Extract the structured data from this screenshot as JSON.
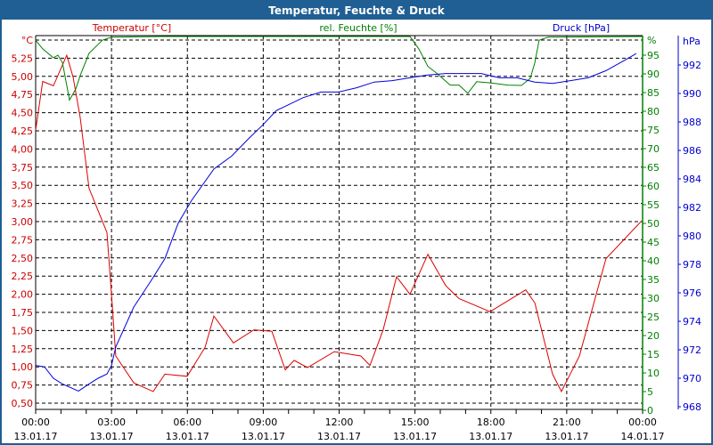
{
  "title": "Temperatur, Feuchte & Druck",
  "chart_data": {
    "type": "line",
    "title": "Temperatur, Feuchte & Druck",
    "x_unit": "hours since 13.01.17 00:00",
    "xlim": [
      0,
      24
    ],
    "x_ticks": [
      {
        "h": 0,
        "time": "00:00",
        "date": "13.01.17"
      },
      {
        "h": 3,
        "time": "03:00",
        "date": "13.01.17"
      },
      {
        "h": 6,
        "time": "06:00",
        "date": "13.01.17"
      },
      {
        "h": 9,
        "time": "09:00",
        "date": "13.01.17"
      },
      {
        "h": 12,
        "time": "12:00",
        "date": "13.01.17"
      },
      {
        "h": 15,
        "time": "15:00",
        "date": "13.01.17"
      },
      {
        "h": 18,
        "time": "18:00",
        "date": "13.01.17"
      },
      {
        "h": 21,
        "time": "21:00",
        "date": "13.01.17"
      },
      {
        "h": 24,
        "time": "00:00",
        "date": "14.01.17"
      }
    ],
    "grid": true,
    "axes": {
      "temp": {
        "label": "Temperatur [°C]",
        "unit": "°C",
        "ylim": [
          0.5,
          5.5
        ],
        "color": "#cc0000",
        "ticks": [
          "0,50",
          "0,75",
          "1,00",
          "1,25",
          "1,50",
          "1,75",
          "2,00",
          "2,25",
          "2,50",
          "2,75",
          "3,00",
          "3,25",
          "3,50",
          "3,75",
          "4,00",
          "4,25",
          "4,50",
          "4,75",
          "5,00",
          "5,25"
        ]
      },
      "hum": {
        "label": "rel. Feuchte [%]",
        "unit": "%",
        "ylim": [
          0,
          100
        ],
        "color": "#008000",
        "ticks": [
          "0",
          "5",
          "10",
          "15",
          "20",
          "25",
          "30",
          "35",
          "40",
          "45",
          "50",
          "55",
          "60",
          "65",
          "70",
          "75",
          "80",
          "85",
          "90",
          "95"
        ]
      },
      "press": {
        "label": "Druck [hPa]",
        "unit": "hPa",
        "ylim": [
          968,
          994
        ],
        "color": "#0000cc",
        "ticks": [
          "968",
          "970",
          "972",
          "974",
          "976",
          "978",
          "980",
          "982",
          "984",
          "986",
          "988",
          "990",
          "992"
        ]
      }
    },
    "series": [
      {
        "name": "Temperatur [°C]",
        "axis": "temp",
        "color": "#dd0000",
        "points": [
          [
            0,
            4.26
          ],
          [
            0.28,
            4.93
          ],
          [
            0.7,
            4.87
          ],
          [
            1.23,
            5.29
          ],
          [
            1.48,
            4.99
          ],
          [
            1.76,
            4.44
          ],
          [
            2.11,
            3.46
          ],
          [
            2.82,
            2.85
          ],
          [
            3.0,
            2.0
          ],
          [
            3.17,
            1.15
          ],
          [
            3.88,
            0.78
          ],
          [
            4.65,
            0.66
          ],
          [
            5.11,
            0.9
          ],
          [
            5.99,
            0.87
          ],
          [
            6.7,
            1.27
          ],
          [
            7.05,
            1.7
          ],
          [
            7.82,
            1.33
          ],
          [
            8.63,
            1.51
          ],
          [
            9.34,
            1.49
          ],
          [
            9.87,
            0.96
          ],
          [
            10.22,
            1.09
          ],
          [
            10.75,
            0.99
          ],
          [
            11.81,
            1.21
          ],
          [
            12.86,
            1.15
          ],
          [
            13.22,
            1.02
          ],
          [
            13.74,
            1.51
          ],
          [
            14.27,
            2.24
          ],
          [
            14.8,
            2.0
          ],
          [
            15.51,
            2.55
          ],
          [
            16.21,
            2.12
          ],
          [
            16.74,
            1.94
          ],
          [
            17.97,
            1.76
          ],
          [
            19.38,
            2.06
          ],
          [
            19.74,
            1.88
          ],
          [
            20.44,
            0.9
          ],
          [
            20.79,
            0.66
          ],
          [
            21.5,
            1.15
          ],
          [
            22.55,
            2.49
          ],
          [
            23.96,
            3.01
          ]
        ]
      },
      {
        "name": "rel. Feuchte [%]",
        "axis": "hum",
        "color": "#008000",
        "points": [
          [
            0,
            99
          ],
          [
            0.28,
            96.7
          ],
          [
            0.7,
            94.3
          ],
          [
            0.88,
            95
          ],
          [
            1.06,
            93
          ],
          [
            1.34,
            83
          ],
          [
            1.59,
            86
          ],
          [
            1.76,
            89.5
          ],
          [
            2.11,
            95.5
          ],
          [
            2.64,
            99
          ],
          [
            3.0,
            99.8
          ],
          [
            5,
            100
          ],
          [
            14.8,
            100
          ],
          [
            15.15,
            96.7
          ],
          [
            15.51,
            92
          ],
          [
            15.86,
            90.2
          ],
          [
            16.39,
            87
          ],
          [
            16.74,
            87
          ],
          [
            17.09,
            84.8
          ],
          [
            17.44,
            87.9
          ],
          [
            17.97,
            87.6
          ],
          [
            18.68,
            87
          ],
          [
            19.21,
            86.9
          ],
          [
            19.56,
            88.8
          ],
          [
            19.74,
            93
          ],
          [
            19.91,
            99
          ],
          [
            20.26,
            99.8
          ],
          [
            24,
            100
          ]
        ]
      },
      {
        "name": "Druck [hPa]",
        "axis": "press",
        "color": "#0000dd",
        "points": [
          [
            0,
            970.9
          ],
          [
            0.35,
            970.8
          ],
          [
            0.7,
            970.0
          ],
          [
            1.06,
            969.6
          ],
          [
            1.69,
            969.1
          ],
          [
            2.11,
            969.6
          ],
          [
            2.47,
            970.0
          ],
          [
            2.82,
            970.3
          ],
          [
            3.0,
            970.9
          ],
          [
            3.17,
            972.2
          ],
          [
            3.88,
            975.0
          ],
          [
            4.58,
            976.9
          ],
          [
            5.11,
            978.4
          ],
          [
            5.64,
            980.9
          ],
          [
            6.17,
            982.5
          ],
          [
            7.05,
            984.7
          ],
          [
            7.75,
            985.6
          ],
          [
            8.46,
            986.9
          ],
          [
            8.99,
            987.8
          ],
          [
            9.52,
            988.8
          ],
          [
            9.87,
            989.1
          ],
          [
            10.57,
            989.7
          ],
          [
            11.28,
            990.1
          ],
          [
            11.98,
            990.1
          ],
          [
            12.69,
            990.4
          ],
          [
            13.39,
            990.8
          ],
          [
            14.1,
            990.9
          ],
          [
            14.8,
            991.1
          ],
          [
            15.51,
            991.3
          ],
          [
            16.21,
            991.4
          ],
          [
            16.92,
            991.4
          ],
          [
            17.62,
            991.4
          ],
          [
            18.33,
            991.1
          ],
          [
            19.03,
            991.1
          ],
          [
            19.74,
            990.8
          ],
          [
            20.44,
            990.7
          ],
          [
            21.15,
            990.9
          ],
          [
            21.85,
            991.1
          ],
          [
            22.55,
            991.6
          ],
          [
            23.26,
            992.3
          ],
          [
            23.75,
            992.8
          ]
        ]
      }
    ]
  }
}
